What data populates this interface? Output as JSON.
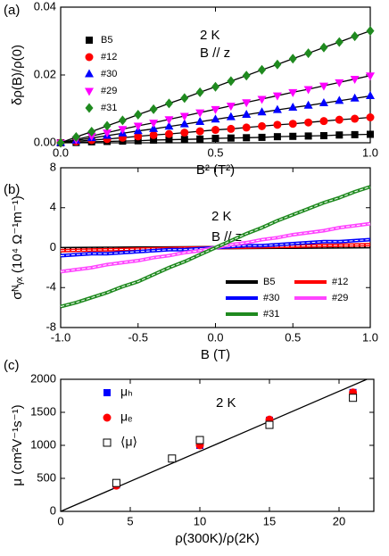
{
  "chart_data": [
    {
      "type": "scatter",
      "panel_label": "(a)",
      "xlabel": "B² (T²)",
      "ylabel": "δρ(B)/ρ(0)",
      "annotations": [
        "2 K",
        "B // z"
      ],
      "legend": "upper left",
      "line_color": "#000000",
      "xlim": [
        0,
        1
      ],
      "ylim": [
        0,
        0.04
      ],
      "xticks": [
        {
          "value": 0,
          "label": "0.0"
        },
        {
          "value": 0.5,
          "label": "0.5"
        },
        {
          "value": 1,
          "label": "1.0"
        }
      ],
      "yticks": [
        {
          "value": 0,
          "label": "0.00"
        },
        {
          "value": 0.02,
          "label": "0.02"
        },
        {
          "value": 0.04,
          "label": "0.04"
        }
      ],
      "x": [
        0,
        0.05,
        0.1,
        0.15,
        0.2,
        0.25,
        0.3,
        0.35,
        0.4,
        0.45,
        0.5,
        0.55,
        0.6,
        0.65,
        0.7,
        0.75,
        0.8,
        0.85,
        0.9,
        0.95,
        1
      ],
      "series": [
        {
          "name": "B5",
          "color": "#000000",
          "marker": "square",
          "values": [
            0,
            0.0001,
            0.0003,
            0.0004,
            0.0005,
            0.0006,
            0.0008,
            0.0009,
            0.001,
            0.0011,
            0.0013,
            0.0014,
            0.0015,
            0.0016,
            0.0018,
            0.0019,
            0.002,
            0.0021,
            0.0023,
            0.0024,
            0.0025
          ]
        },
        {
          "name": "#12",
          "color": "#ff0000",
          "marker": "circle",
          "values": [
            0,
            0.0004,
            0.0008,
            0.0011,
            0.0015,
            0.0019,
            0.0023,
            0.0026,
            0.003,
            0.0034,
            0.0038,
            0.0041,
            0.0045,
            0.0049,
            0.0053,
            0.0056,
            0.006,
            0.0064,
            0.0068,
            0.0071,
            0.0075
          ]
        },
        {
          "name": "#30",
          "color": "#0000ff",
          "marker": "triangle-up",
          "values": [
            0,
            0.0007,
            0.0014,
            0.0021,
            0.0028,
            0.0035,
            0.0041,
            0.0048,
            0.0055,
            0.0062,
            0.0069,
            0.0076,
            0.0083,
            0.009,
            0.0097,
            0.0104,
            0.011,
            0.0117,
            0.0124,
            0.0131,
            0.0138
          ]
        },
        {
          "name": "#29",
          "color": "#ff00ff",
          "marker": "triangle-down",
          "values": [
            0,
            0.001,
            0.002,
            0.003,
            0.004,
            0.005,
            0.0059,
            0.0069,
            0.0079,
            0.0089,
            0.0099,
            0.0109,
            0.0119,
            0.0129,
            0.0139,
            0.0149,
            0.0158,
            0.0168,
            0.0178,
            0.0188,
            0.0198
          ]
        },
        {
          "name": "#31",
          "color": "#1f8a1f",
          "marker": "diamond",
          "values": [
            0,
            0.0017,
            0.0033,
            0.005,
            0.0066,
            0.0083,
            0.0099,
            0.0116,
            0.0132,
            0.0149,
            0.0165,
            0.0182,
            0.0198,
            0.0215,
            0.0231,
            0.0248,
            0.0264,
            0.0281,
            0.0297,
            0.0314,
            0.033
          ]
        }
      ]
    },
    {
      "type": "line",
      "panel_label": "(b)",
      "xlabel": "B (T)",
      "ylabel": "σᴺᵧₓ (10⁴ Ω⁻¹m⁻¹)",
      "annotations": [
        "2 K",
        "B // z"
      ],
      "legend": "lower right",
      "xlim": [
        -1,
        1
      ],
      "ylim": [
        -8,
        8
      ],
      "xticks": [
        {
          "value": -1,
          "label": "-1.0"
        },
        {
          "value": -0.5,
          "label": "-0.5"
        },
        {
          "value": 0,
          "label": "0.0"
        },
        {
          "value": 0.5,
          "label": "0.5"
        },
        {
          "value": 1,
          "label": "1.0"
        }
      ],
      "yticks": [
        -8,
        -4,
        0,
        4,
        8
      ],
      "x": [
        -1,
        -0.9,
        -0.8,
        -0.7,
        -0.6,
        -0.5,
        -0.4,
        -0.3,
        -0.2,
        -0.1,
        0,
        0.1,
        0.2,
        0.3,
        0.4,
        0.5,
        0.6,
        0.7,
        0.8,
        0.9,
        1
      ],
      "series": [
        {
          "name": "B5",
          "color": "#000000",
          "values": [
            -0.1,
            -0.09,
            -0.08,
            -0.07,
            -0.06,
            -0.05,
            -0.04,
            -0.03,
            -0.02,
            -0.01,
            0,
            0.01,
            0.02,
            0.03,
            0.04,
            0.05,
            0.06,
            0.07,
            0.08,
            0.09,
            0.1
          ]
        },
        {
          "name": "#12",
          "color": "#ff0000",
          "values": [
            -0.3,
            -0.27,
            -0.24,
            -0.21,
            -0.18,
            -0.15,
            -0.12,
            -0.09,
            -0.06,
            -0.03,
            0,
            0.03,
            0.06,
            0.09,
            0.12,
            0.15,
            0.18,
            0.21,
            0.24,
            0.27,
            0.3
          ]
        },
        {
          "name": "#30",
          "color": "#0000ff",
          "values": [
            -0.8,
            -0.7,
            -0.6,
            -0.6,
            -0.5,
            -0.4,
            -0.3,
            -0.2,
            -0.2,
            -0.1,
            0,
            0.1,
            0.2,
            0.2,
            0.3,
            0.4,
            0.5,
            0.6,
            0.6,
            0.7,
            0.8
          ]
        },
        {
          "name": "#29",
          "color": "#ff44ff",
          "values": [
            -2.4,
            -2.2,
            -2,
            -1.7,
            -1.5,
            -1.3,
            -1,
            -0.8,
            -0.5,
            -0.3,
            0,
            0.3,
            0.5,
            0.8,
            1,
            1.3,
            1.5,
            1.7,
            2,
            2.2,
            2.4
          ]
        },
        {
          "name": "#31",
          "color": "#1f8a1f",
          "values": [
            -5.9,
            -5.5,
            -5,
            -4.5,
            -3.9,
            -3.4,
            -2.7,
            -2,
            -1.4,
            -0.7,
            0,
            0.7,
            1.4,
            2,
            2.7,
            3.3,
            3.9,
            4.5,
            5,
            5.6,
            6.1
          ]
        }
      ]
    },
    {
      "type": "scatter",
      "panel_label": "(c)",
      "xlabel": "ρ(300K)/ρ(2K)",
      "ylabel": "μ (cm²V⁻¹s⁻¹)",
      "annotations": [
        "2 K"
      ],
      "legend": "upper left",
      "xlim": [
        0,
        22.5
      ],
      "ylim": [
        0,
        2000
      ],
      "xticks": [
        0,
        5,
        10,
        15,
        20
      ],
      "yticks": [
        0,
        500,
        1000,
        1500,
        2000
      ],
      "x": [
        4,
        8,
        10,
        15,
        21
      ],
      "series": [
        {
          "name": "μₕ",
          "color": "#0000ff",
          "marker": "square",
          "values": [
            400,
            null,
            1000,
            1380,
            1800
          ]
        },
        {
          "name": "μₑ",
          "color": "#ff0000",
          "marker": "circle",
          "values": [
            390,
            null,
            1000,
            1390,
            1800
          ]
        },
        {
          "name": "⟨μ⟩",
          "color": "#000000",
          "marker": "open-square",
          "values": [
            430,
            800,
            1080,
            1310,
            1720
          ]
        }
      ],
      "fit": {
        "x": [
          0,
          22
        ],
        "values": [
          0,
          2000
        ],
        "color": "#000000"
      }
    }
  ]
}
